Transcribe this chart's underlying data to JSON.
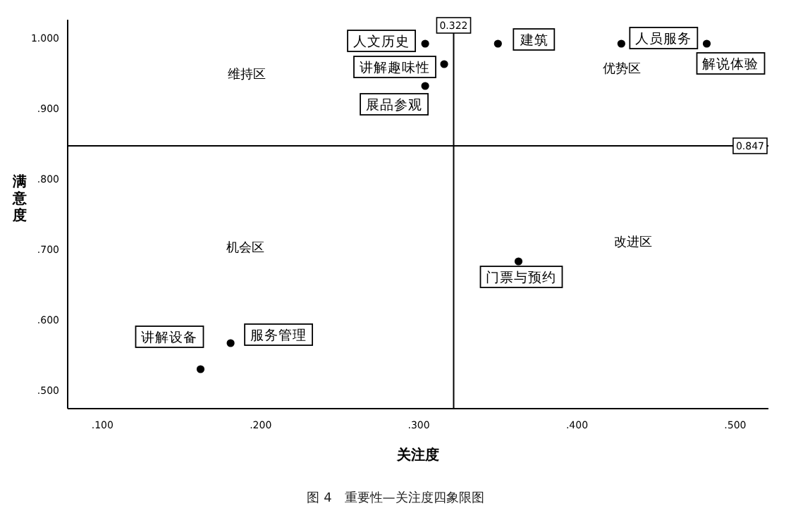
{
  "chart_data": {
    "type": "scatter",
    "title": "图 4　重要性—关注度四象限图",
    "xlabel": "关注度",
    "ylabel": "满意度",
    "x": [
      0.304,
      0.316,
      0.304,
      0.35,
      0.428,
      0.482,
      0.363,
      0.181,
      0.162
    ],
    "values": [
      0.992,
      0.963,
      0.932,
      0.992,
      0.992,
      0.992,
      0.683,
      0.567,
      0.53
    ],
    "color": "#000000",
    "marker": "circle",
    "xlim": [
      0.078,
      0.521
    ],
    "ylim": [
      0.474,
      1.026
    ],
    "xticks": [
      {
        "value": 0.1,
        "label": ".100"
      },
      {
        "value": 0.2,
        "label": ".200"
      },
      {
        "value": 0.3,
        "label": ".300"
      },
      {
        "value": 0.4,
        "label": ".400"
      },
      {
        "value": 0.5,
        "label": ".500"
      }
    ],
    "yticks": [
      {
        "value": 0.5,
        "label": ".500"
      },
      {
        "value": 0.6,
        "label": ".600"
      },
      {
        "value": 0.7,
        "label": ".700"
      },
      {
        "value": 0.8,
        "label": ".800"
      },
      {
        "value": 0.9,
        "label": ".900"
      },
      {
        "value": 1.0,
        "label": "1.000"
      }
    ],
    "ref_lines": [
      {
        "axis": "x",
        "value": 0.322,
        "label": "0.322"
      },
      {
        "axis": "y",
        "value": 0.847,
        "label": "0.847"
      }
    ],
    "annotations": [
      {
        "text": "人文历史",
        "x": 0.304,
        "y": 0.992
      },
      {
        "text": "讲解趣味性",
        "x": 0.316,
        "y": 0.963
      },
      {
        "text": "展品参观",
        "x": 0.304,
        "y": 0.932
      },
      {
        "text": "建筑",
        "x": 0.35,
        "y": 0.992
      },
      {
        "text": "人员服务",
        "x": 0.428,
        "y": 0.992
      },
      {
        "text": "解说体验",
        "x": 0.482,
        "y": 0.992
      },
      {
        "text": "门票与预约",
        "x": 0.363,
        "y": 0.683
      },
      {
        "text": "服务管理",
        "x": 0.181,
        "y": 0.567
      },
      {
        "text": "讲解设备",
        "x": 0.162,
        "y": 0.53
      },
      "维持区",
      "优势区",
      "机会区",
      "改进区"
    ]
  }
}
